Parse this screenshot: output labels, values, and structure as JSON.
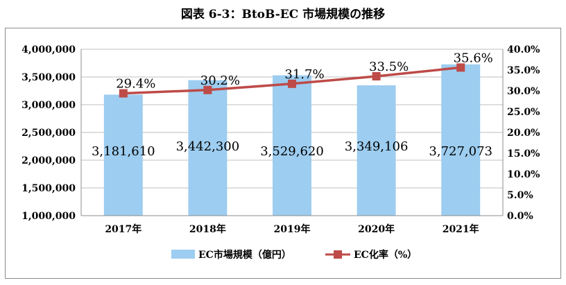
{
  "title": "図表 6-3：BtoB-EC 市場規模の推移",
  "chart_data": {
    "type": "bar",
    "categories": [
      "2017年",
      "2018年",
      "2019年",
      "2020年",
      "2021年"
    ],
    "series": [
      {
        "name": "EC市場規模（億円）",
        "kind": "bar",
        "axis": "left",
        "color": "#9dcdf0",
        "values": [
          3181610,
          3442300,
          3529620,
          3349106,
          3727073
        ],
        "labels": [
          "3,181,610",
          "3,442,300",
          "3,529,620",
          "3,349,106",
          "3,727,073"
        ]
      },
      {
        "name": "EC化率（%）",
        "kind": "line",
        "axis": "right",
        "color": "#be4b48",
        "values": [
          29.4,
          30.2,
          31.7,
          33.5,
          35.6
        ],
        "labels": [
          "29.4%",
          "30.2%",
          "31.7%",
          "33.5%",
          "35.6%"
        ]
      }
    ],
    "y_left": {
      "lim": [
        1000000,
        4000000
      ],
      "ticks": [
        "1,000,000",
        "1,500,000",
        "2,000,000",
        "2,500,000",
        "3,000,000",
        "3,500,000",
        "4,000,000"
      ]
    },
    "y_right": {
      "lim": [
        0,
        40
      ],
      "ticks": [
        "0.0%",
        "5.0%",
        "10.0%",
        "15.0%",
        "20.0%",
        "25.0%",
        "30.0%",
        "35.0%",
        "40.0%"
      ]
    },
    "grid": true,
    "legend": "bottom"
  }
}
